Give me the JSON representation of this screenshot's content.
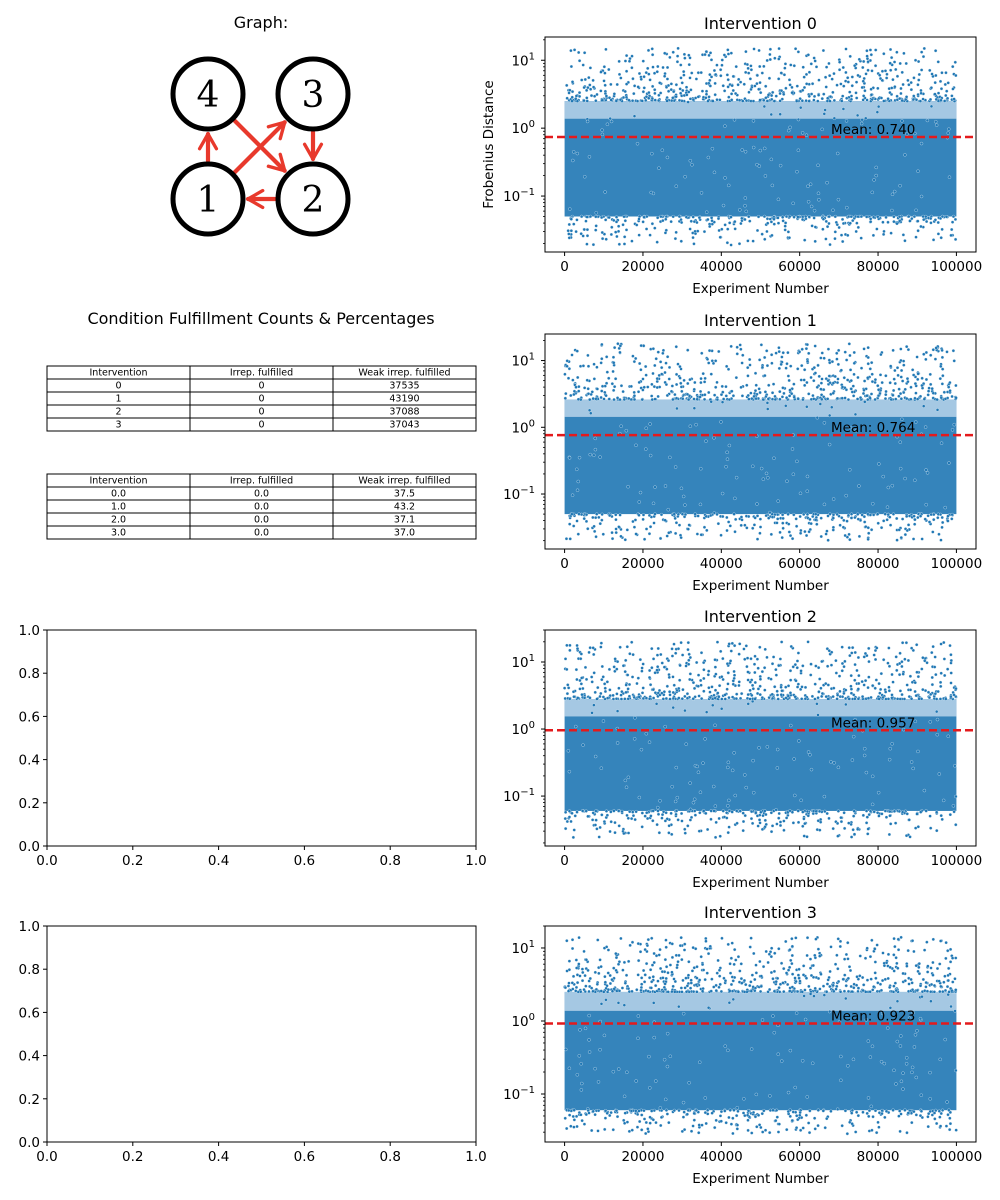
{
  "figure": {
    "graph_panel": {
      "title": "Graph:",
      "nodes": [
        {
          "label": "4",
          "col": 0,
          "row": 0
        },
        {
          "label": "3",
          "col": 1,
          "row": 0
        },
        {
          "label": "1",
          "col": 0,
          "row": 1
        },
        {
          "label": "2",
          "col": 1,
          "row": 1
        }
      ],
      "edges": [
        {
          "from": "1",
          "to": "4"
        },
        {
          "from": "1",
          "to": "3"
        },
        {
          "from": "4",
          "to": "2"
        },
        {
          "from": "3",
          "to": "2"
        },
        {
          "from": "2",
          "to": "1"
        }
      ],
      "node_color": "#000000",
      "edge_color": "#e8392c"
    },
    "tables_panel": {
      "title": "Condition Fulfillment Counts & Percentages",
      "counts_table": {
        "headers": [
          "Intervention",
          "Irrep. fulfilled",
          "Weak irrep. fulfilled"
        ],
        "rows": [
          [
            "0",
            "0",
            "37535"
          ],
          [
            "1",
            "0",
            "43190"
          ],
          [
            "2",
            "0",
            "37088"
          ],
          [
            "3",
            "0",
            "37043"
          ]
        ]
      },
      "percent_table": {
        "headers": [
          "Intervention",
          "Irrep. fulfilled",
          "Weak irrep. fulfilled"
        ],
        "rows": [
          [
            "0.0",
            "0.0",
            "37.5"
          ],
          [
            "1.0",
            "0.0",
            "43.2"
          ],
          [
            "2.0",
            "0.0",
            "37.1"
          ],
          [
            "3.0",
            "0.0",
            "37.0"
          ]
        ]
      }
    },
    "empty_axes": {
      "count": 2,
      "xlim": [
        0,
        1
      ],
      "ylim": [
        0,
        1
      ],
      "ticks": [
        "0.0",
        "0.2",
        "0.4",
        "0.6",
        "0.8",
        "1.0"
      ]
    }
  },
  "chart_data": [
    {
      "type": "scatter",
      "title": "Intervention 0",
      "xlabel": "Experiment Number",
      "ylabel": "Frobenius Distance",
      "yscale": "log",
      "xlim": [
        -5000,
        105000
      ],
      "ylim": [
        0.015,
        22
      ],
      "xticks": [
        0,
        20000,
        40000,
        60000,
        80000,
        100000
      ],
      "yticks": [
        0.1,
        1,
        10
      ],
      "n_points": 100000,
      "mean": 0.74,
      "mean_label": "Mean: 0.740",
      "band": [
        0.05,
        2.5
      ],
      "y_extent": [
        0.019,
        15
      ],
      "color": "#1f77b4",
      "mean_color": "#e41a1c",
      "grid": false
    },
    {
      "type": "scatter",
      "title": "Intervention 1",
      "xlabel": "Experiment Number",
      "ylabel": "",
      "yscale": "log",
      "xlim": [
        -5000,
        105000
      ],
      "ylim": [
        0.015,
        25
      ],
      "xticks": [
        0,
        20000,
        40000,
        60000,
        80000,
        100000
      ],
      "yticks": [
        0.1,
        1,
        10
      ],
      "n_points": 100000,
      "mean": 0.764,
      "mean_label": "Mean: 0.764",
      "band": [
        0.05,
        2.6
      ],
      "y_extent": [
        0.02,
        18
      ],
      "color": "#1f77b4",
      "mean_color": "#e41a1c",
      "grid": false
    },
    {
      "type": "scatter",
      "title": "Intervention 2",
      "xlabel": "Experiment Number",
      "ylabel": "",
      "yscale": "log",
      "xlim": [
        -5000,
        105000
      ],
      "ylim": [
        0.018,
        30
      ],
      "xticks": [
        0,
        20000,
        40000,
        60000,
        80000,
        100000
      ],
      "yticks": [
        0.1,
        1,
        10
      ],
      "n_points": 100000,
      "mean": 0.957,
      "mean_label": "Mean: 0.957",
      "band": [
        0.06,
        2.8
      ],
      "y_extent": [
        0.024,
        20
      ],
      "color": "#1f77b4",
      "mean_color": "#e41a1c",
      "grid": false
    },
    {
      "type": "scatter",
      "title": "Intervention 3",
      "xlabel": "Experiment Number",
      "ylabel": "",
      "yscale": "log",
      "xlim": [
        -5000,
        105000
      ],
      "ylim": [
        0.022,
        20
      ],
      "xticks": [
        0,
        20000,
        40000,
        60000,
        80000,
        100000
      ],
      "yticks": [
        0.1,
        1,
        10
      ],
      "n_points": 100000,
      "mean": 0.923,
      "mean_label": "Mean: 0.923",
      "band": [
        0.06,
        2.5
      ],
      "y_extent": [
        0.028,
        14
      ],
      "color": "#1f77b4",
      "mean_color": "#e41a1c",
      "grid": false
    }
  ]
}
